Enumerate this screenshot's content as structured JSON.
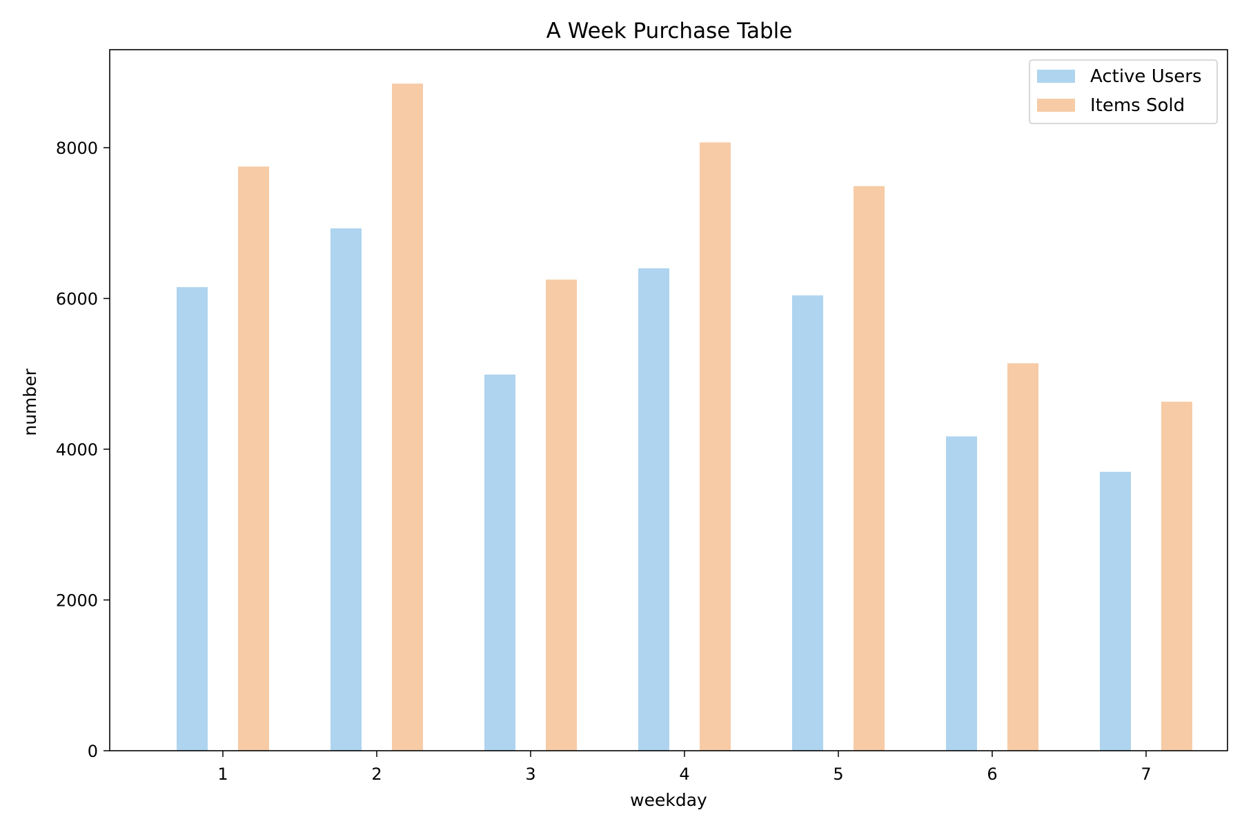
{
  "chart_data": {
    "type": "bar",
    "title": "A Week Purchase Table",
    "xlabel": "weekday",
    "ylabel": "number",
    "categories": [
      "1",
      "2",
      "3",
      "4",
      "5",
      "6",
      "7"
    ],
    "ylim": [
      0,
      9300
    ],
    "yticks": [
      0,
      2000,
      4000,
      6000,
      8000
    ],
    "grid": false,
    "legend_position": "top-right",
    "series": [
      {
        "name": "Active Users",
        "color": "#aed4ef",
        "values": [
          6150,
          6930,
          4990,
          6400,
          6040,
          4170,
          3700
        ]
      },
      {
        "name": "Items Sold",
        "color": "#f6cba6",
        "values": [
          7750,
          8850,
          6250,
          8070,
          7490,
          5140,
          4630
        ]
      }
    ]
  }
}
